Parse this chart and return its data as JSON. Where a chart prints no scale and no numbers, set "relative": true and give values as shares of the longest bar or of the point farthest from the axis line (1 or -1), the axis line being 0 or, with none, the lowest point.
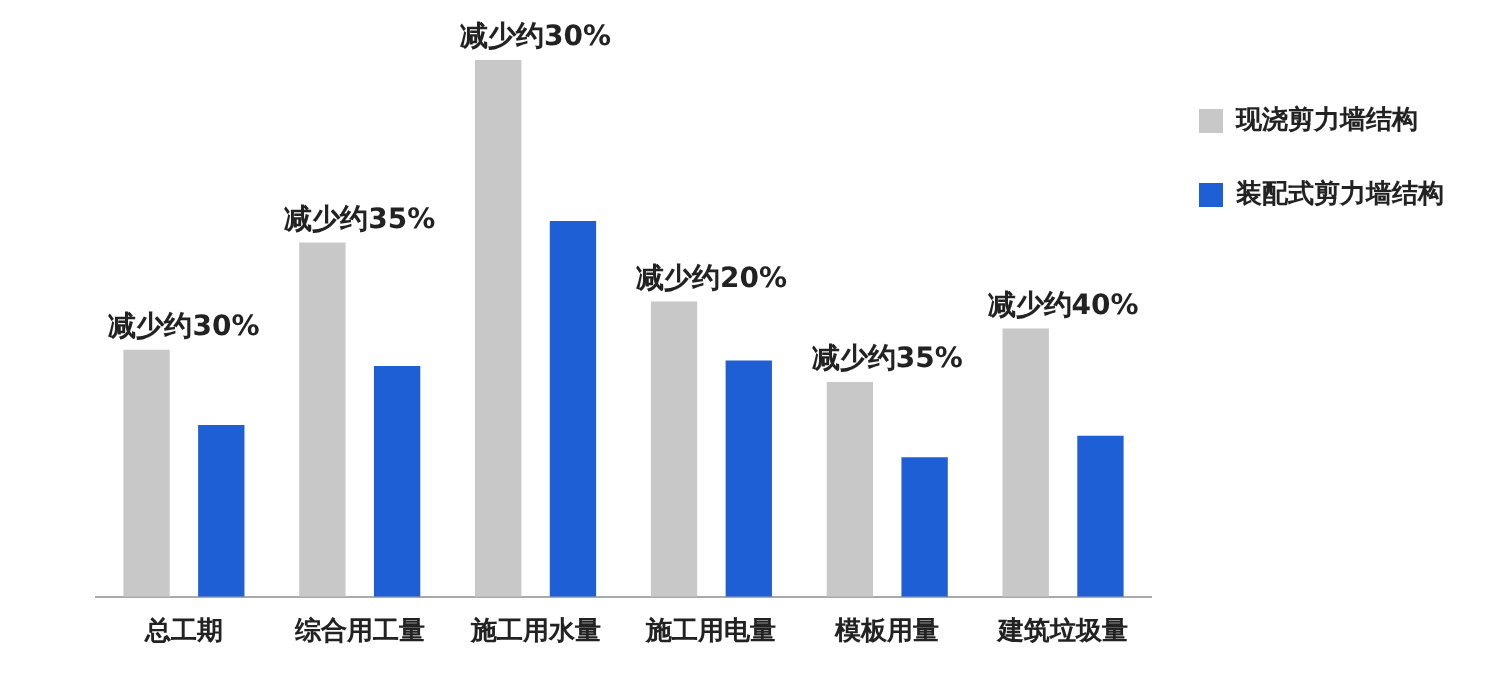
{
  "chart_data": {
    "type": "bar",
    "relative": true,
    "categories": [
      "总工期",
      "综合用工量",
      "施工用水量",
      "施工用电量",
      "模板用量",
      "建筑垃圾量"
    ],
    "series": [
      {
        "name": "现浇剪力墙结构",
        "color": "#c8c8c8",
        "values": [
          0.46,
          0.66,
          1,
          0.55,
          0.4,
          0.5
        ]
      },
      {
        "name": "装配式剪力墙结构",
        "color": "#1f5fd6",
        "values": [
          0.32,
          0.43,
          0.7,
          0.44,
          0.26,
          0.3
        ]
      }
    ],
    "annotations": [
      "减少约30%",
      "减少约35%",
      "减少约30%",
      "减少约20%",
      "减少约35%",
      "减少约40%"
    ],
    "legend": "top right",
    "grid": false
  }
}
